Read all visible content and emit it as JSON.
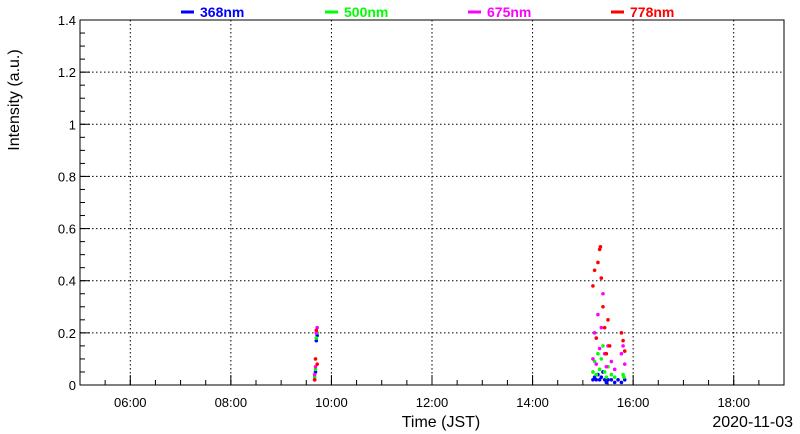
{
  "chart_data": {
    "type": "scatter",
    "xlabel": "Time (JST)",
    "ylabel": "Intensity (a.u.)",
    "date_label": "2020-11-03",
    "xlim": [
      "05:00",
      "19:00"
    ],
    "ylim": [
      0,
      1.4
    ],
    "x_ticks": [
      "06:00",
      "08:00",
      "10:00",
      "12:00",
      "14:00",
      "16:00",
      "18:00"
    ],
    "y_ticks": [
      "0",
      "0.2",
      "0.4",
      "0.6",
      "0.8",
      "1",
      "1.2",
      "1.4"
    ],
    "grid": true,
    "legend_position": "top",
    "series": [
      {
        "name": "368nm",
        "color": "#0000ff",
        "points": [
          [
            "09:40",
            0.02
          ],
          [
            "09:41",
            0.05
          ],
          [
            "09:42",
            0.17
          ],
          [
            "09:43",
            0.19
          ],
          [
            "15:12",
            0.02
          ],
          [
            "15:14",
            0.03
          ],
          [
            "15:16",
            0.02
          ],
          [
            "15:18",
            0.04
          ],
          [
            "15:20",
            0.02
          ],
          [
            "15:22",
            0.03
          ],
          [
            "15:24",
            0.05
          ],
          [
            "15:26",
            0.02
          ],
          [
            "15:28",
            0.01
          ],
          [
            "15:30",
            0.02
          ],
          [
            "15:34",
            0.02
          ],
          [
            "15:38",
            0.01
          ],
          [
            "15:42",
            0.02
          ],
          [
            "15:46",
            0.01
          ],
          [
            "15:50",
            0.02
          ]
        ]
      },
      {
        "name": "500nm",
        "color": "#00ff00",
        "points": [
          [
            "09:40",
            0.03
          ],
          [
            "09:41",
            0.06
          ],
          [
            "09:42",
            0.18
          ],
          [
            "09:43",
            0.2
          ],
          [
            "15:12",
            0.05
          ],
          [
            "15:14",
            0.09
          ],
          [
            "15:16",
            0.04
          ],
          [
            "15:18",
            0.12
          ],
          [
            "15:20",
            0.06
          ],
          [
            "15:22",
            0.1
          ],
          [
            "15:24",
            0.15
          ],
          [
            "15:26",
            0.05
          ],
          [
            "15:28",
            0.03
          ],
          [
            "15:30",
            0.07
          ],
          [
            "15:34",
            0.04
          ],
          [
            "15:38",
            0.03
          ],
          [
            "15:48",
            0.04
          ],
          [
            "15:49",
            0.03
          ]
        ]
      },
      {
        "name": "675nm",
        "color": "#ff00ff",
        "points": [
          [
            "09:40",
            0.04
          ],
          [
            "09:41",
            0.07
          ],
          [
            "09:42",
            0.2
          ],
          [
            "09:43",
            0.22
          ],
          [
            "15:12",
            0.1
          ],
          [
            "15:14",
            0.2
          ],
          [
            "15:16",
            0.08
          ],
          [
            "15:18",
            0.27
          ],
          [
            "15:20",
            0.14
          ],
          [
            "15:22",
            0.22
          ],
          [
            "15:24",
            0.35
          ],
          [
            "15:26",
            0.12
          ],
          [
            "15:28",
            0.07
          ],
          [
            "15:30",
            0.15
          ],
          [
            "15:34",
            0.09
          ],
          [
            "15:38",
            0.06
          ],
          [
            "15:46",
            0.12
          ],
          [
            "15:48",
            0.15
          ],
          [
            "15:50",
            0.08
          ]
        ]
      },
      {
        "name": "778nm",
        "color": "#ff0000",
        "points": [
          [
            "09:40",
            0.02
          ],
          [
            "09:41",
            0.1
          ],
          [
            "09:42",
            0.21
          ],
          [
            "09:43",
            0.08
          ],
          [
            "15:12",
            0.38
          ],
          [
            "15:14",
            0.44
          ],
          [
            "15:16",
            0.18
          ],
          [
            "15:18",
            0.47
          ],
          [
            "15:20",
            0.52
          ],
          [
            "15:21",
            0.53
          ],
          [
            "15:22",
            0.41
          ],
          [
            "15:24",
            0.3
          ],
          [
            "15:26",
            0.22
          ],
          [
            "15:28",
            0.12
          ],
          [
            "15:30",
            0.25
          ],
          [
            "15:32",
            0.15
          ],
          [
            "15:46",
            0.2
          ],
          [
            "15:48",
            0.17
          ],
          [
            "15:50",
            0.13
          ]
        ]
      }
    ]
  }
}
